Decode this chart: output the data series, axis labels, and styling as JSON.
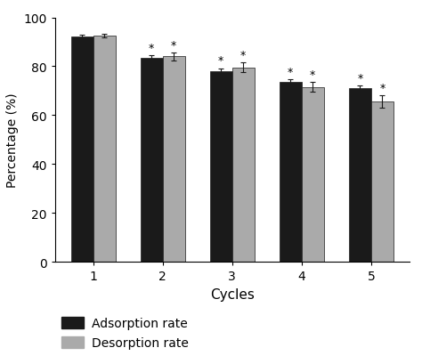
{
  "cycles": [
    1,
    2,
    3,
    4,
    5
  ],
  "adsorption_values": [
    92.0,
    83.5,
    78.0,
    73.5,
    71.0
  ],
  "desorption_values": [
    92.5,
    84.0,
    79.5,
    71.5,
    65.5
  ],
  "adsorption_errors": [
    0.8,
    1.0,
    1.2,
    1.2,
    1.2
  ],
  "desorption_errors": [
    0.8,
    1.5,
    2.0,
    2.0,
    2.5
  ],
  "adsorption_color": "#1a1a1a",
  "desorption_color": "#aaaaaa",
  "bar_width": 0.32,
  "ylim": [
    0,
    100
  ],
  "yticks": [
    0,
    20,
    40,
    60,
    80,
    100
  ],
  "xlabel": "Cycles",
  "ylabel": "Percentage (%)",
  "legend_adsorption": "Adsorption rate",
  "legend_desorption": "Desorption rate",
  "star_cycles": [
    2,
    3,
    4,
    5
  ],
  "background_color": "#ffffff",
  "edge_color": "#1a1a1a"
}
